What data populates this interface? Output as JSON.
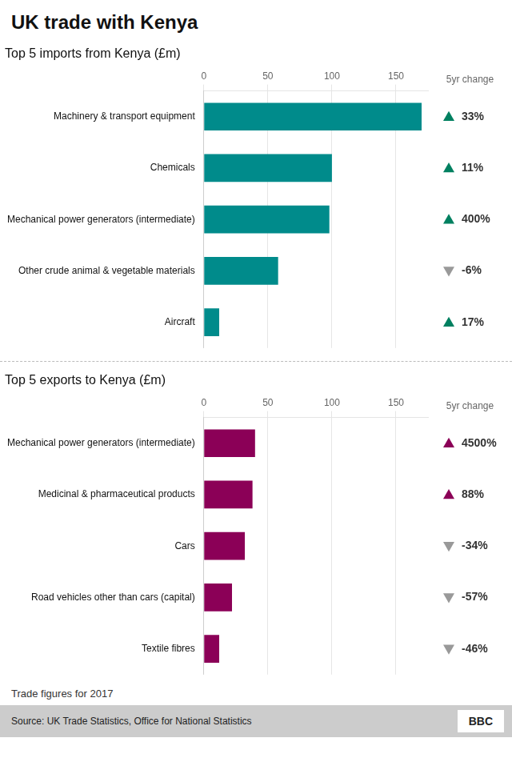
{
  "title": "UK trade with Kenya",
  "annotations": [
    "Trade figures for 2017",
    "Source: UK Trade Statistics, Office for National Statistics",
    "BBC"
  ],
  "chart_data": [
    {
      "type": "bar",
      "orientation": "horizontal",
      "subtitle": "Top 5 imports from Kenya (£m)",
      "categories": [
        "Machinery & transport equipment",
        "Chemicals",
        "Mechanical power generators (intermediate)",
        "Other crude animal & vegetable materials",
        "Aircraft"
      ],
      "values": [
        170,
        100,
        98,
        58,
        12
      ],
      "color": "#008B8B",
      "xlim": [
        0,
        175
      ],
      "xticks": [
        0,
        50,
        100,
        150
      ],
      "grid": true,
      "legend": false,
      "changes": {
        "name": "5yr change",
        "values": [
          33,
          11,
          400,
          -6,
          17
        ],
        "value_labels": [
          "33%",
          "11%",
          "400%",
          "-6%",
          "17%"
        ],
        "marker": "triangle",
        "colors": [
          "#008060",
          "#008060",
          "#008060",
          "#999999",
          "#008060"
        ]
      }
    },
    {
      "type": "bar",
      "orientation": "horizontal",
      "subtitle": "Top 5 exports to Kenya (£m)",
      "categories": [
        "Mechanical power generators (intermediate)",
        "Medicinal & pharmaceutical products",
        "Cars",
        "Road vehicles other than cars (capital)",
        "Textile fibres"
      ],
      "values": [
        40,
        38,
        32,
        22,
        12
      ],
      "color": "#8B0057",
      "xlim": [
        0,
        175
      ],
      "xticks": [
        0,
        50,
        100,
        150
      ],
      "grid": true,
      "legend": false,
      "changes": {
        "name": "5yr change",
        "values": [
          4500,
          88,
          -34,
          -57,
          -46
        ],
        "value_labels": [
          "4500%",
          "88%",
          "-34%",
          "-57%",
          "-46%"
        ],
        "marker": "triangle",
        "colors": [
          "#8B0057",
          "#8B0057",
          "#999999",
          "#999999",
          "#999999"
        ]
      }
    }
  ]
}
